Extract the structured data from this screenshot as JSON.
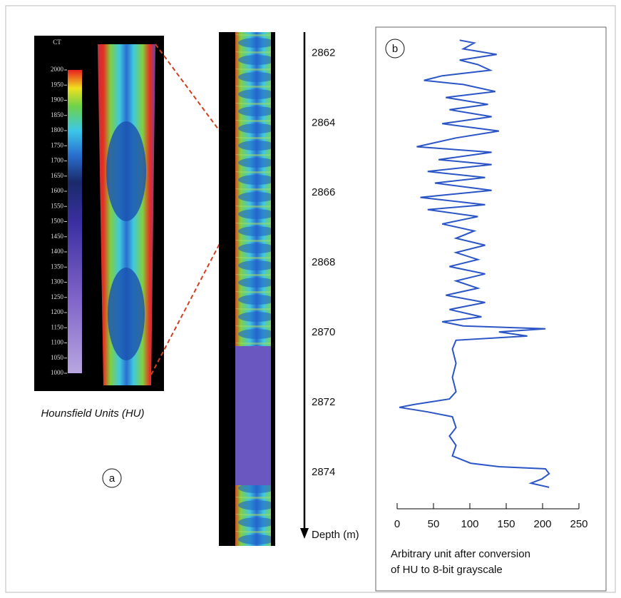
{
  "panels": {
    "a": "a",
    "b": "b"
  },
  "colorbar": {
    "title": "CT",
    "caption": "Hounsfield Units (HU)",
    "lim": [
      1000,
      2000
    ],
    "ticks": [
      1000,
      1050,
      1100,
      1150,
      1200,
      1250,
      1300,
      1350,
      1400,
      1450,
      1500,
      1550,
      1600,
      1650,
      1700,
      1750,
      1800,
      1850,
      1900,
      1950,
      2000
    ]
  },
  "chart_data": {
    "type": "line",
    "xlabel": [
      "Arbitrary unit after conversion",
      "of HU to 8-bit grayscale"
    ],
    "ylabel": "Depth (m)",
    "xlim": [
      0,
      250
    ],
    "xticks": [
      0,
      50,
      100,
      150,
      200,
      250
    ],
    "ylim": [
      2861.4,
      2875.8
    ],
    "yticks": [
      2862,
      2864,
      2866,
      2868,
      2870,
      2872,
      2874
    ],
    "color": "#2b55c6",
    "depth": [
      2861.63,
      2861.71,
      2861.88,
      2862.04,
      2862.2,
      2862.33,
      2862.49,
      2862.65,
      2862.78,
      2862.9,
      2863.1,
      2863.27,
      2863.47,
      2863.62,
      2863.82,
      2864.02,
      2864.23,
      2864.43,
      2864.68,
      2864.84,
      2865.05,
      2865.19,
      2865.39,
      2865.56,
      2865.72,
      2865.93,
      2866.13,
      2866.34,
      2866.48,
      2866.68,
      2866.89,
      2867.09,
      2867.3,
      2867.5,
      2867.71,
      2867.91,
      2868.11,
      2868.32,
      2868.52,
      2868.73,
      2868.93,
      2869.14,
      2869.34,
      2869.55,
      2869.69,
      2869.81,
      2869.89,
      2869.98,
      2870.1,
      2870.22,
      2870.47,
      2870.88,
      2871.28,
      2871.69,
      2871.9,
      2872.06,
      2872.14,
      2872.27,
      2872.41,
      2872.72,
      2872.96,
      2873.23,
      2873.53,
      2873.74,
      2873.84,
      2873.9,
      2874.04,
      2874.19,
      2874.31,
      2874.43
    ],
    "values": [
      86,
      106,
      91,
      137,
      86,
      111,
      128,
      62,
      37,
      91,
      135,
      67,
      125,
      72,
      130,
      62,
      140,
      81,
      27,
      130,
      57,
      130,
      42,
      121,
      52,
      130,
      32,
      121,
      42,
      111,
      62,
      106,
      81,
      121,
      81,
      111,
      72,
      121,
      81,
      111,
      67,
      121,
      72,
      116,
      62,
      91,
      204,
      140,
      179,
      81,
      76,
      81,
      76,
      81,
      72,
      23,
      3,
      42,
      76,
      81,
      72,
      81,
      76,
      101,
      140,
      204,
      209,
      199,
      184,
      209
    ]
  }
}
